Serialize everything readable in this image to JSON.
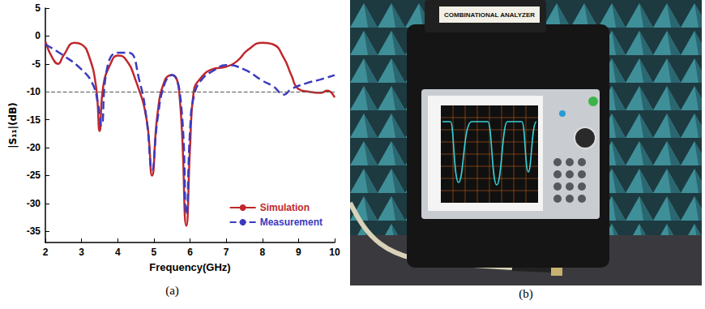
{
  "chart_data": {
    "type": "line",
    "x_label": "Frequency(GHz)",
    "y_label": "|S₁₁|(dB)",
    "annotations": [
      "(a)"
    ],
    "xlim": [
      2,
      10
    ],
    "xticks": [
      2,
      3,
      4,
      5,
      6,
      7,
      8,
      9,
      10
    ],
    "ylim": [
      -37,
      5
    ],
    "yticks": [
      5,
      0,
      -5,
      -10,
      -15,
      -20,
      -25,
      -30,
      -35
    ],
    "threshold": -10,
    "grid": false,
    "legend": "lower right",
    "series": [
      {
        "name": "Simulation",
        "color": "#c0282d",
        "line_style": "solid",
        "x": [
          2.0,
          2.2,
          2.35,
          2.5,
          2.8,
          3.0,
          3.2,
          3.4,
          3.5,
          3.6,
          3.8,
          4.0,
          4.2,
          4.5,
          4.8,
          4.95,
          5.1,
          5.3,
          5.5,
          5.7,
          5.9,
          6.0,
          6.1,
          6.3,
          6.6,
          7.0,
          7.3,
          7.6,
          8.0,
          8.3,
          8.6,
          8.8,
          9.0,
          9.3,
          9.6,
          9.8,
          10.0
        ],
        "values": [
          -1,
          -4,
          -5,
          -3.5,
          -1.2,
          -1.5,
          -3.5,
          -9,
          -17,
          -9,
          -5,
          -3.5,
          -4,
          -8,
          -15,
          -25,
          -14,
          -8,
          -7,
          -10,
          -34,
          -20,
          -10,
          -7.5,
          -6,
          -5.5,
          -4.5,
          -2.5,
          -1.2,
          -1.5,
          -4,
          -7,
          -9.5,
          -10,
          -10.2,
          -9.8,
          -11
        ]
      },
      {
        "name": "Measurement",
        "color": "#3b3bbf",
        "line_style": "dashed",
        "x": [
          2.0,
          2.5,
          3.0,
          3.3,
          3.45,
          3.55,
          3.7,
          4.0,
          4.3,
          4.6,
          4.8,
          4.95,
          5.1,
          5.3,
          5.5,
          5.75,
          5.9,
          6.0,
          6.1,
          6.3,
          6.7,
          7.0,
          7.5,
          8.0,
          8.3,
          8.6,
          8.8,
          9.2,
          9.6,
          10.0
        ],
        "values": [
          -1.5,
          -3.5,
          -6,
          -8.5,
          -12,
          -16,
          -6,
          -3,
          -3,
          -8,
          -15,
          -24,
          -15,
          -8.5,
          -7,
          -12,
          -32,
          -17,
          -11,
          -8,
          -6,
          -5.2,
          -6,
          -8,
          -9,
          -10.5,
          -9.5,
          -8.5,
          -7.8,
          -7
        ]
      }
    ]
  },
  "photo": {
    "panel_label": "(b)",
    "device_label": "COMBINATIONAL ANALYZER"
  }
}
